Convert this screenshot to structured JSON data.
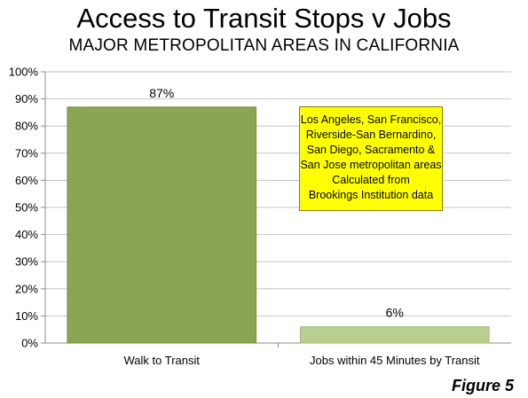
{
  "header": {
    "title": "Access to Transit Stops v Jobs",
    "subtitle": "MAJOR METROPOLITAN AREAS IN CALIFORNIA"
  },
  "note_lines": [
    "Los Angeles, San Francisco,",
    "Riverside-San Bernardino,",
    "San Diego, Sacramento &",
    "San Jose metropolitan areas",
    "Calculated from",
    "Brookings Institution data"
  ],
  "figure_label": "Figure 5",
  "chart_data": {
    "type": "bar",
    "title": "Access to Transit Stops v Jobs",
    "subtitle": "MAJOR METROPOLITAN AREAS IN CALIFORNIA",
    "categories": [
      "Walk to Transit",
      "Jobs within 45 Minutes by Transit"
    ],
    "values": [
      87,
      6
    ],
    "data_labels": [
      "87%",
      "6%"
    ],
    "y_ticks": [
      "0%",
      "10%",
      "20%",
      "30%",
      "40%",
      "50%",
      "60%",
      "70%",
      "80%",
      "90%",
      "100%"
    ],
    "ylim": [
      0,
      100
    ],
    "grid": true,
    "legend": "none",
    "colors": {
      "bar1": "#8aa554",
      "bar1_border": "#76903f",
      "bar2": "#b8cf8f",
      "bar2_border": "#a3bb78",
      "grid": "#c6c6c6",
      "axis": "#8c8c8c"
    }
  }
}
